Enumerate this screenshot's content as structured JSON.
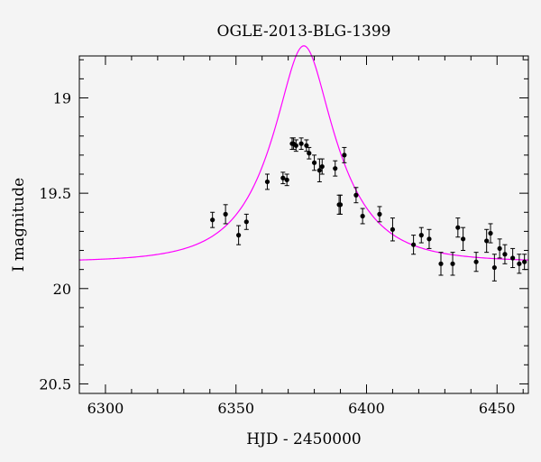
{
  "chart_data": {
    "type": "scatter",
    "title": "OGLE-2013-BLG-1399",
    "xlabel": "HJD - 2450000",
    "ylabel": "I magnitude",
    "xlim": [
      6290,
      6462
    ],
    "ylim": [
      20.55,
      18.78
    ],
    "y_inverted": true,
    "x_ticks": [
      6300,
      6350,
      6400,
      6450
    ],
    "x_tick_labels": [
      "6300",
      "6350",
      "6400",
      "6450"
    ],
    "y_ticks": [
      19.0,
      19.5,
      20.0,
      20.5
    ],
    "y_tick_labels": [
      "19",
      "19.5",
      "20",
      "20.5"
    ],
    "grid": false,
    "colors": {
      "model": "#ff00ff",
      "points": "#000000",
      "background": "#f4f4f4"
    },
    "series": [
      {
        "type": "errorbar",
        "x": [
          6341,
          6346,
          6351,
          6354,
          6362,
          6368,
          6369.5,
          6371.5,
          6372,
          6373,
          6375,
          6377,
          6378,
          6380,
          6382,
          6383,
          6388,
          6389.5,
          6390,
          6391.5,
          6396,
          6398.5,
          6405,
          6410,
          6418,
          6421,
          6424,
          6428.5,
          6433,
          6435,
          6437,
          6442,
          6446,
          6447.5,
          6449,
          6451,
          6453,
          6456,
          6458.5,
          6460.5
        ],
        "y": [
          19.64,
          19.61,
          19.72,
          19.65,
          19.44,
          19.42,
          19.43,
          19.24,
          19.24,
          19.25,
          19.24,
          19.25,
          19.29,
          19.34,
          19.38,
          19.36,
          19.37,
          19.56,
          19.56,
          19.3,
          19.51,
          19.62,
          19.61,
          19.69,
          19.77,
          19.72,
          19.74,
          19.87,
          19.87,
          19.68,
          19.74,
          19.86,
          19.75,
          19.71,
          19.89,
          19.79,
          19.82,
          19.84,
          19.87,
          19.86
        ],
        "yerr": [
          0.04,
          0.05,
          0.05,
          0.04,
          0.04,
          0.03,
          0.03,
          0.03,
          0.03,
          0.03,
          0.03,
          0.03,
          0.03,
          0.04,
          0.06,
          0.04,
          0.04,
          0.05,
          0.05,
          0.04,
          0.04,
          0.04,
          0.04,
          0.06,
          0.05,
          0.04,
          0.05,
          0.06,
          0.06,
          0.05,
          0.06,
          0.05,
          0.06,
          0.05,
          0.07,
          0.05,
          0.05,
          0.05,
          0.05,
          0.04
        ]
      }
    ],
    "model_curve": {
      "t0": 6376,
      "u0": 0.37,
      "tE": 24,
      "baseline_mag": 19.86
    }
  }
}
